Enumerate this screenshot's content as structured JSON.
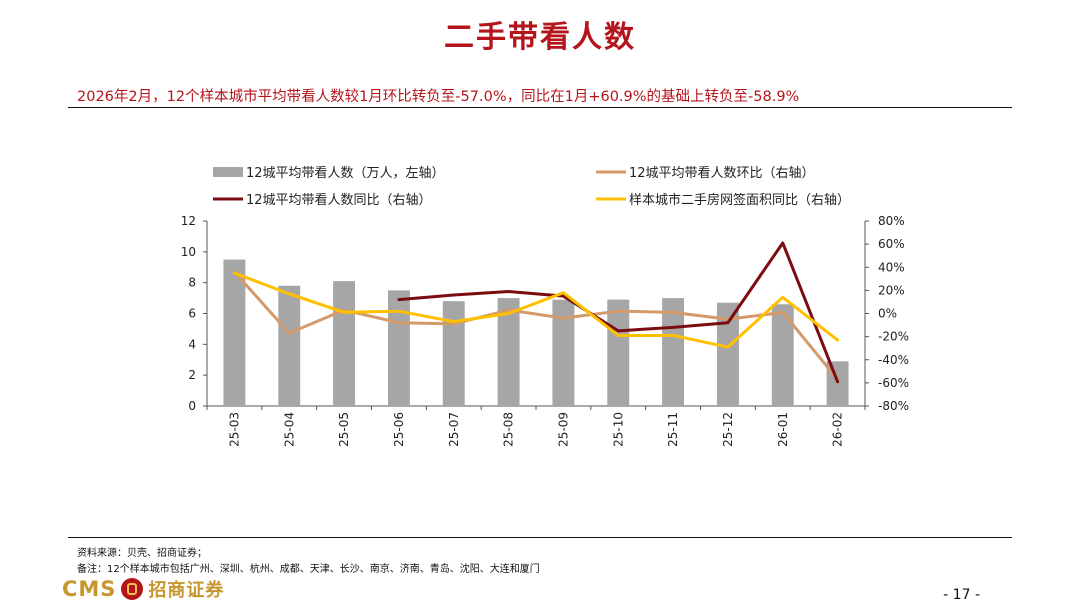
{
  "page": {
    "title": "二手带看人数",
    "subtitle": "2026年2月，12个样本城市平均带看人数较1月环比转负至-57.0%，同比在1月+60.9%的基础上转负至-58.9%",
    "source": "资料来源：贝壳、招商证券；",
    "note": "备注：12个样本城市包括广州、深圳、杭州、成都、天津、长沙、南京、济南、青岛、沈阳、大连和厦门",
    "page_number": "- 17 -",
    "logo_cms": "CMS",
    "logo_cn": "招商证券"
  },
  "chart_data": {
    "type": "bar",
    "categories": [
      "25-03",
      "25-04",
      "25-05",
      "25-06",
      "25-07",
      "25-08",
      "25-09",
      "25-10",
      "25-11",
      "25-12",
      "26-01",
      "26-02"
    ],
    "left_axis": {
      "ylim": [
        0,
        12
      ],
      "ticks": [
        "0",
        "2",
        "4",
        "6",
        "8",
        "10",
        "12"
      ]
    },
    "right_axis": {
      "ylim": [
        -80,
        80
      ],
      "ticks": [
        "-80%",
        "-60%",
        "-40%",
        "-20%",
        "0%",
        "20%",
        "40%",
        "60%",
        "80%"
      ]
    },
    "legend_placement": "top",
    "series": [
      {
        "name": "12城平均带看人数（万人，左轴）",
        "type": "bar",
        "axis": "left",
        "color": "#a6a6a6",
        "values": [
          9.5,
          7.8,
          8.1,
          7.5,
          6.8,
          7.0,
          6.9,
          6.9,
          7.0,
          6.7,
          6.6,
          2.9
        ]
      },
      {
        "name": "12城平均带看人数环比（右轴）",
        "type": "line",
        "axis": "right",
        "color": "#d49a6a",
        "values": [
          36,
          -17,
          3,
          -8,
          -9,
          3,
          -4,
          2,
          1,
          -5,
          1,
          -57
        ]
      },
      {
        "name": "12城平均带看人数同比（右轴）",
        "type": "line",
        "axis": "right",
        "color": "#7b0c10",
        "values": [
          null,
          null,
          null,
          12,
          16,
          19,
          15,
          -15,
          -12,
          -8,
          61,
          -59
        ]
      },
      {
        "name": "样本城市二手房网签面积同比（右轴）",
        "type": "line",
        "axis": "right",
        "color": "#ffc000",
        "values": [
          35,
          17,
          1,
          2,
          -7,
          0,
          18,
          -19,
          -19,
          -29,
          14,
          -23
        ]
      }
    ]
  }
}
